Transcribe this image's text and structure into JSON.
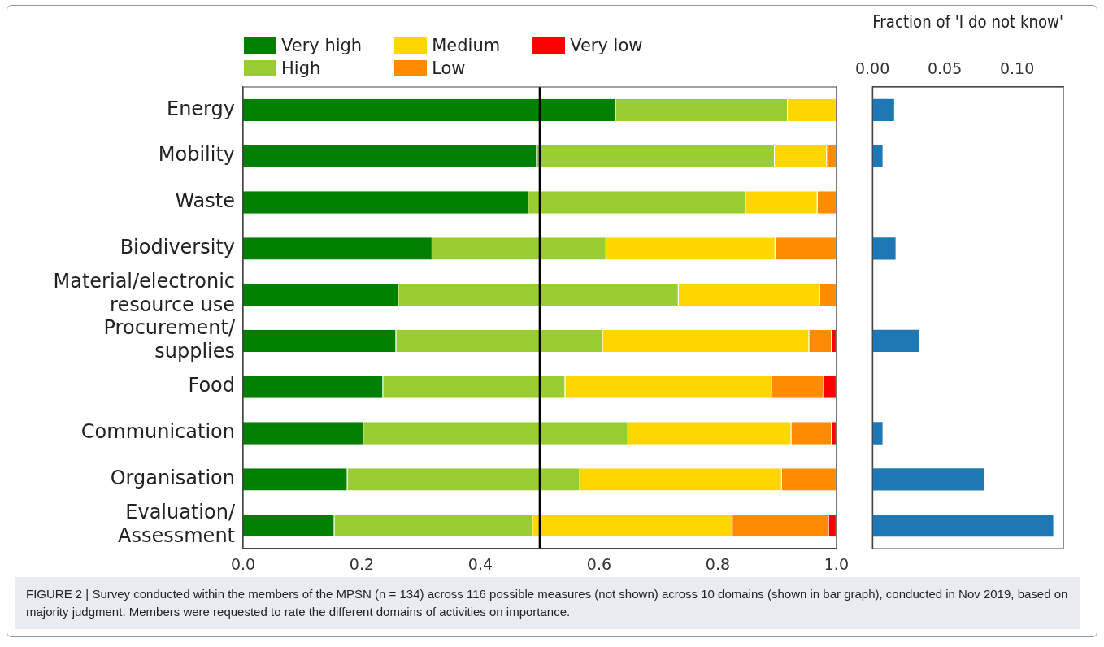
{
  "chart_data": [
    {
      "type": "bar",
      "orientation": "horizontal",
      "stacked": true,
      "categories": [
        "Energy",
        "Mobility",
        "Waste",
        "Biodiversity",
        "Material/electronic resource use",
        "Procurement/supplies",
        "Food",
        "Communication",
        "Organisation",
        "Evaluation/Assessment"
      ],
      "series": [
        {
          "name": "Very high",
          "color": "#008000",
          "values": [
            0.628,
            0.495,
            0.481,
            0.319,
            0.262,
            0.258,
            0.236,
            0.203,
            0.176,
            0.154
          ]
        },
        {
          "name": "High",
          "color": "#9acd32",
          "values": [
            0.29,
            0.401,
            0.366,
            0.293,
            0.472,
            0.348,
            0.307,
            0.446,
            0.392,
            0.334
          ]
        },
        {
          "name": "Medium",
          "color": "#ffd700",
          "values": [
            0.082,
            0.088,
            0.121,
            0.285,
            0.238,
            0.348,
            0.348,
            0.275,
            0.34,
            0.337
          ]
        },
        {
          "name": "Low",
          "color": "#ff8c00",
          "values": [
            0,
            0.016,
            0.032,
            0.103,
            0.028,
            0.038,
            0.088,
            0.068,
            0.092,
            0.162
          ]
        },
        {
          "name": "Very low",
          "color": "#ff0000",
          "values": [
            0,
            0,
            0,
            0,
            0,
            0.008,
            0.021,
            0.008,
            0,
            0.013
          ]
        }
      ],
      "xlim": [
        0,
        1
      ],
      "xticks": [
        {
          "value": 0,
          "label": "0.0"
        },
        {
          "value": 0.2,
          "label": "0.2"
        },
        {
          "value": 0.4,
          "label": "0.4"
        },
        {
          "value": 0.6,
          "label": "0.6"
        },
        {
          "value": 0.8,
          "label": "0.8"
        },
        {
          "value": 1,
          "label": "1.0"
        }
      ],
      "legend": "top left",
      "ref_lines": [
        {
          "axis": "x",
          "value": 0.5,
          "color": "#000000"
        }
      ],
      "annotations": [
        "FIGURE 2 | Survey conducted within the members of the MPSN (n = 134) across 116 possible measures (not shown) across 10 domains (shown in bar graph), conducted in Nov 2019, based on majority judgment. Members were requested to rate the different domains of activities on importance."
      ]
    },
    {
      "type": "bar",
      "orientation": "horizontal",
      "categories": [
        null,
        null,
        null,
        null,
        null,
        null,
        null,
        null,
        null,
        null
      ],
      "series": [
        {
          "color": "#1f77b4",
          "axis": "x2",
          "values": [
            0.015,
            0.007,
            0,
            0.016,
            0,
            0.032,
            0,
            0.007,
            0.077,
            0.125
          ]
        }
      ],
      "x2label": "Fraction of 'I do not know'",
      "x2lim": [
        0,
        0.132
      ],
      "x2ticks": [
        {
          "value": 0,
          "label": "0.00"
        },
        {
          "value": 0.05,
          "label": "0.05"
        },
        {
          "value": 0.1,
          "label": "0.10"
        }
      ],
      "tick_labels": "x"
    }
  ]
}
